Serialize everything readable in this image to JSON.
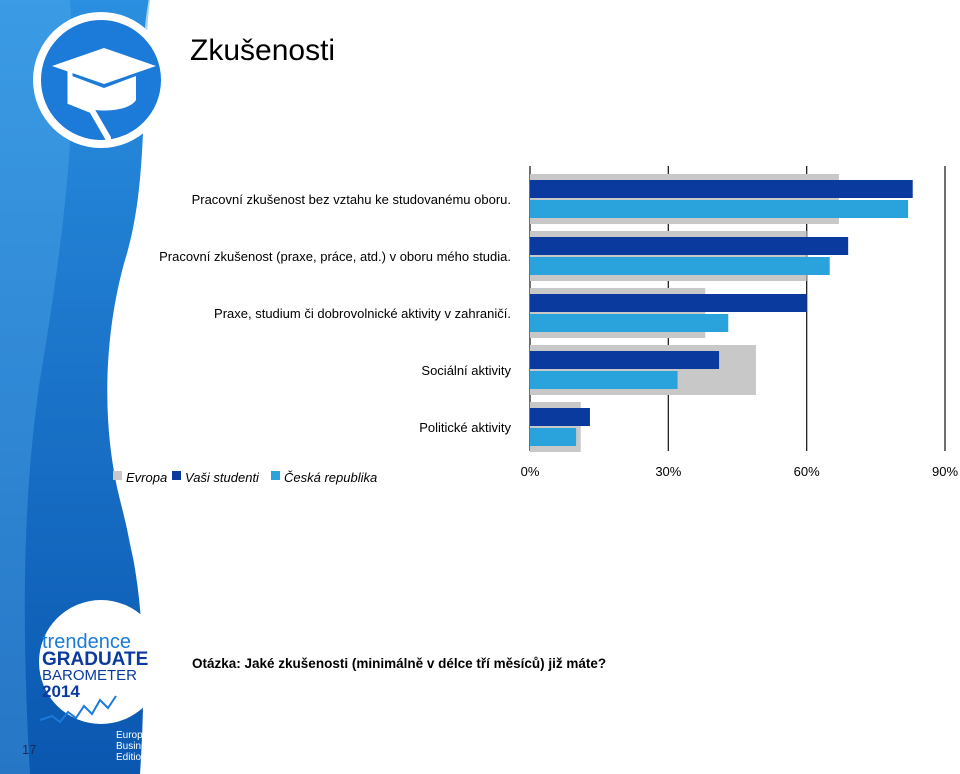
{
  "slide": {
    "title": "Zkušenosti",
    "question": "Otázka: Jaké zkušenosti (minimálně v délce tří měsíců) již máte?",
    "page_number": "17"
  },
  "logos": {
    "top": {
      "icon": "graduation-cap-icon"
    },
    "bottom": {
      "line1": "trendence",
      "line2": "GRADUATE",
      "line3": "BAROMETER",
      "line4": "2014",
      "edition_line1": "European",
      "edition_line2": "Business",
      "edition_line3": "Edition"
    }
  },
  "colors": {
    "evropa": "#c8c8c8",
    "vasi_studenti": "#0b3a9e",
    "ceska_republika": "#2aa3dc",
    "accent_blue": "#1c6fc4"
  },
  "chart_data": {
    "type": "bar",
    "orientation": "horizontal",
    "categories": [
      "Pracovní zkušenost bez vztahu ke studovanému oboru.",
      "Pracovní zkušenost (praxe, práce, atd.) v oboru mého studia.",
      "Praxe, studium či dobrovolnické aktivity v zahraničí.",
      "Sociální aktivity",
      "Politické aktivity"
    ],
    "series": [
      {
        "name": "Evropa",
        "values": [
          67,
          60,
          38,
          49,
          11
        ]
      },
      {
        "name": "Vaši studenti",
        "values": [
          83,
          69,
          60,
          41,
          13
        ]
      },
      {
        "name": "Česká republika",
        "values": [
          82,
          65,
          43,
          32,
          10
        ]
      }
    ],
    "xlim": [
      0,
      90
    ],
    "ticks": [
      "0%",
      "30%",
      "60%",
      "90%"
    ],
    "tick_values": [
      0,
      30,
      60,
      90
    ],
    "legend_position": "bottom-left",
    "grid": true
  }
}
